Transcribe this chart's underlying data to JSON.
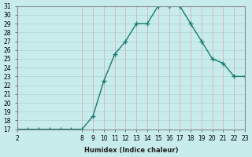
{
  "x": [
    2,
    3,
    4,
    5,
    6,
    7,
    8,
    9,
    10,
    11,
    12,
    13,
    14,
    15,
    16,
    17,
    18,
    19,
    20,
    21,
    22,
    23
  ],
  "y": [
    17,
    17,
    17,
    17,
    17,
    17,
    17,
    18.5,
    22.5,
    25.5,
    27,
    29,
    29,
    31,
    31,
    31,
    29,
    27,
    25,
    24.5,
    23,
    23
  ],
  "xlabel": "Humidex (Indice chaleur)",
  "xlim": [
    2,
    23
  ],
  "ylim": [
    17,
    31
  ],
  "xticks": [
    2,
    8,
    9,
    10,
    11,
    12,
    13,
    14,
    15,
    16,
    17,
    18,
    19,
    20,
    21,
    22,
    23
  ],
  "yticks": [
    17,
    18,
    19,
    20,
    21,
    22,
    23,
    24,
    25,
    26,
    27,
    28,
    29,
    30,
    31
  ],
  "line_color": "#1a7a6e",
  "marker": "+",
  "marker_size": 4,
  "bg_color": "#c8ecec",
  "hgrid_color": "#b0d0d0",
  "vgrid_color": "#d8a8a8",
  "border_color": "#888888"
}
